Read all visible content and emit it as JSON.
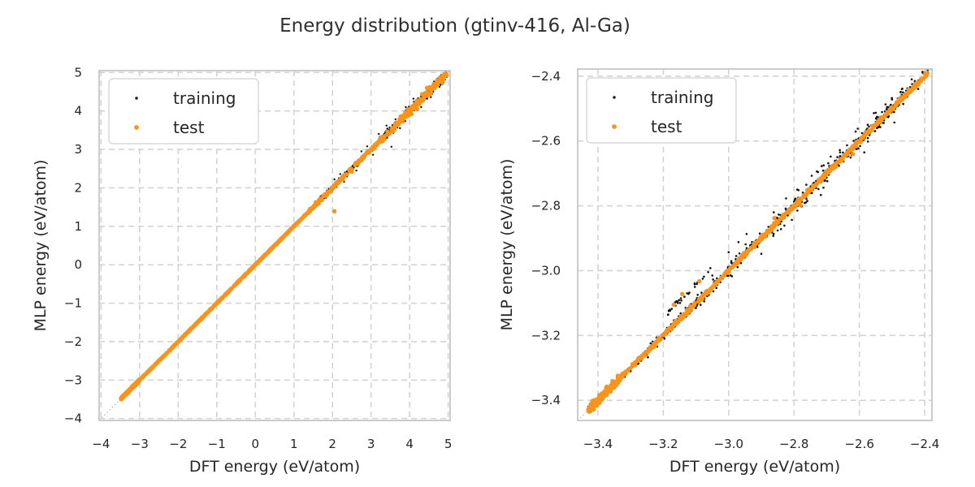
{
  "header": {
    "title": "Energy distribution (gtinv-416, Al-Ga)"
  },
  "colors": {
    "training": "#111111",
    "test": "#f7941d",
    "grid": "#d3d3d3",
    "spine": "#c6c6c6",
    "identity_line": "#9a9a9a",
    "text": "#262626",
    "background": "#ffffff"
  },
  "legend": {
    "position": "upper left",
    "items": [
      {
        "label": "training",
        "series": "training"
      },
      {
        "label": "test",
        "series": "test"
      }
    ]
  },
  "chart_data": [
    {
      "type": "scatter",
      "name": "full-range-parity-plot",
      "xlabel": "DFT energy (eV/atom)",
      "ylabel": "MLP energy (eV/atom)",
      "xlim": [
        -4.05,
        5.05
      ],
      "ylim": [
        -4.05,
        5.05
      ],
      "xticks": {
        "values": [
          -4,
          -3,
          -2,
          -1,
          0,
          1,
          2,
          3,
          4,
          5
        ],
        "labels": [
          "−4",
          "−3",
          "−2",
          "−1",
          "0",
          "1",
          "2",
          "3",
          "4",
          "5"
        ]
      },
      "yticks": {
        "values": [
          -4,
          -3,
          -2,
          -1,
          0,
          1,
          2,
          3,
          4,
          5
        ],
        "labels": [
          "−4",
          "−3",
          "−2",
          "−1",
          "0",
          "1",
          "2",
          "3",
          "4",
          "5"
        ]
      },
      "grid": {
        "show": true,
        "style": "dashed"
      },
      "identity_line": true,
      "legend_visible": true,
      "seed": 20,
      "series": [
        {
          "name": "training",
          "color": "#111111",
          "marker_diameter_px": 2.4,
          "legend_marker_px": 3.4,
          "clusters": [
            {
              "x_from": -3.48,
              "x_to": 1.35,
              "count": 700,
              "y_sigma": 0.006,
              "y_offset": 0
            },
            {
              "x_from": -0.6,
              "x_to": 1.35,
              "count": 60,
              "y_sigma": 0.018,
              "y_offset": 0
            },
            {
              "x_from": 1.35,
              "x_to": 3.2,
              "count": 260,
              "y_sigma": 0.035,
              "y_offset": 0
            },
            {
              "x_from": 3.2,
              "x_to": 4.97,
              "count": 300,
              "y_sigma": 0.06,
              "y_offset": 0
            }
          ],
          "outlier_points": [
            [
              2.05,
              2.22
            ],
            [
              2.3,
              2.16
            ],
            [
              2.62,
              2.45
            ],
            [
              3.53,
              3.07
            ],
            [
              2.9,
              3.08
            ],
            [
              3.2,
              3.4
            ],
            [
              3.05,
              2.86
            ],
            [
              3.75,
              3.55
            ],
            [
              4.1,
              4.32
            ],
            [
              2.2,
              2.36
            ],
            [
              4.55,
              4.36
            ],
            [
              3.4,
              3.62
            ],
            [
              2.75,
              2.95
            ],
            [
              4.3,
              4.1
            ],
            [
              3.9,
              4.1
            ]
          ]
        },
        {
          "name": "test",
          "color": "#f7941d",
          "marker_diameter_px": 5.4,
          "legend_marker_px": 5.8,
          "clusters": [
            {
              "x_from": -3.48,
              "x_to": -3.0,
              "count": 260,
              "y_sigma": 0.012,
              "y_offset": 0
            },
            {
              "x_from": -3.48,
              "x_to": 1.35,
              "count": 520,
              "y_sigma": 0.005,
              "y_offset": 0
            },
            {
              "x_from": 1.35,
              "x_to": 3.2,
              "count": 130,
              "y_sigma": 0.022,
              "y_offset": 0
            },
            {
              "x_from": 3.2,
              "x_to": 4.97,
              "count": 150,
              "y_sigma": 0.045,
              "y_offset": 0
            }
          ],
          "outlier_points": [
            [
              2.05,
              1.39
            ],
            [
              1.95,
              1.9
            ],
            [
              4.2,
              4.05
            ],
            [
              2.5,
              2.42
            ],
            [
              3.3,
              3.22
            ],
            [
              4.45,
              4.6
            ],
            [
              4.05,
              3.92
            ]
          ]
        }
      ]
    },
    {
      "type": "scatter",
      "name": "zoomed-parity-plot",
      "xlabel": "DFT energy (eV/atom)",
      "ylabel": "MLP energy (eV/atom)",
      "xlim": [
        -3.462,
        -2.378
      ],
      "ylim": [
        -3.462,
        -2.378
      ],
      "xticks": {
        "values": [
          -3.4,
          -3.2,
          -3.0,
          -2.8,
          -2.6,
          -2.4
        ],
        "labels": [
          "−3.4",
          "−3.2",
          "−3.0",
          "−2.8",
          "−2.6",
          "−2.4"
        ]
      },
      "yticks": {
        "values": [
          -2.4,
          -2.6,
          -2.8,
          -3.0,
          -3.2,
          -3.4
        ],
        "labels": [
          "−2.4",
          "−2.6",
          "−2.8",
          "−3.0",
          "−3.2",
          "−3.4"
        ]
      },
      "grid": {
        "show": true,
        "style": "dashed"
      },
      "identity_line": true,
      "legend_visible": true,
      "seed": 77,
      "series": [
        {
          "name": "training",
          "color": "#111111",
          "marker_diameter_px": 2.6,
          "legend_marker_px": 3.4,
          "clusters": [
            {
              "x_from": -3.43,
              "x_to": -3.25,
              "count": 260,
              "y_sigma": 0.004,
              "y_offset": 0
            },
            {
              "x_from": -3.25,
              "x_to": -2.39,
              "count": 620,
              "y_sigma": 0.008,
              "y_offset": 0
            },
            {
              "x_from": -3.02,
              "x_to": -2.44,
              "count": 130,
              "y_sigma": 0.02,
              "y_offset": 0
            },
            {
              "x_from": -3.19,
              "x_to": -3.055,
              "count": 30,
              "y_sigma": 0.006,
              "y_offset": 0.057
            }
          ],
          "outlier_points": [
            [
              -2.97,
              -2.912
            ],
            [
              -2.945,
              -2.887
            ],
            [
              -3.0,
              -2.943
            ],
            [
              -2.9,
              -2.948
            ],
            [
              -2.605,
              -2.562
            ],
            [
              -2.55,
              -2.513
            ],
            [
              -2.73,
              -2.694
            ],
            [
              -2.47,
              -2.44
            ],
            [
              -2.862,
              -2.82
            ],
            [
              -2.84,
              -2.872
            ],
            [
              -2.52,
              -2.487
            ],
            [
              -2.66,
              -2.628
            ],
            [
              -2.585,
              -2.635
            ],
            [
              -2.44,
              -2.41
            ],
            [
              -2.79,
              -2.75
            ],
            [
              -3.05,
              -3.015
            ]
          ]
        },
        {
          "name": "test",
          "color": "#f7941d",
          "marker_diameter_px": 5.4,
          "legend_marker_px": 5.8,
          "clusters": [
            {
              "x_from": -3.43,
              "x_to": -3.33,
              "count": 160,
              "y_sigma": 0.006,
              "y_offset": 0
            },
            {
              "x_from": -3.43,
              "x_to": -2.39,
              "count": 620,
              "y_sigma": 0.003,
              "y_offset": 0
            }
          ],
          "outlier_points": [
            [
              -3.142,
              -3.072
            ],
            [
              -3.09,
              -3.033
            ],
            [
              -3.168,
              -3.105
            ],
            [
              -2.78,
              -2.798
            ],
            [
              -2.62,
              -2.64
            ],
            [
              -2.86,
              -2.838
            ]
          ]
        }
      ]
    }
  ]
}
